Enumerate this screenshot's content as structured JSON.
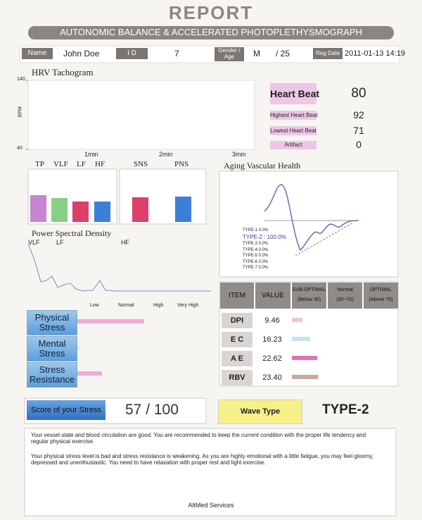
{
  "header": {
    "title": "REPORT",
    "subtitle": "AUTONOMIC BALANCE & ACCELERATED PHOTOPLETHYSMOGRAPH"
  },
  "patient": {
    "name_label": "Name",
    "name": "John Doe",
    "id_label": "I D",
    "id": "7",
    "gender_age_label": "Gender / Age",
    "gender": "M",
    "age": "/ 25",
    "reg_date_label": "Reg Date",
    "reg_date": "2011-01-13 14:19"
  },
  "hrv_tachogram": {
    "title": "HRV Tachogram",
    "y_label": "BPM",
    "ylim": [
      40,
      140
    ],
    "yticks": [
      140,
      40
    ],
    "x_labels": [
      "1min",
      "2min",
      "3min"
    ]
  },
  "heart_rate": [
    {
      "label": "Heart Beat",
      "value": 80
    },
    {
      "label": "Highest Heart Beat",
      "value": 92
    },
    {
      "label": "Lowest Heart Beat",
      "value": 71
    },
    {
      "label": "Artifact",
      "value": 0
    }
  ],
  "bands": {
    "categories": [
      "TP",
      "VLF",
      "LF",
      "HF"
    ],
    "values": [
      38,
      34,
      29,
      29
    ],
    "colors": [
      "#c784d2",
      "#86cf86",
      "#de3f6a",
      "#3b7fd9"
    ]
  },
  "autonomic": {
    "categories": [
      "SNS",
      "PNS"
    ],
    "values": [
      35,
      36
    ],
    "colors": [
      "#de3f6a",
      "#3b7fd9"
    ]
  },
  "aging_vascular": {
    "title": "Aging Vascular Health",
    "types": [
      "TYPE-1  0.0%",
      "TYPE-2 : 100.0%",
      "TYPE-3  0.0%",
      "TYPE-4  0.0%",
      "TYPE-5  0.0%",
      "TYPE-6  0.0%",
      "TYPE-7  0.0%"
    ]
  },
  "psd": {
    "title": "Power Spectral Density",
    "band_labels": [
      "VLF",
      "LF",
      "HF"
    ],
    "x_labels": [
      "Low",
      "Normal",
      "High",
      "Very High"
    ]
  },
  "stress": [
    {
      "label": "Physical Stress",
      "value": 95,
      "color": "#f1a9d2"
    },
    {
      "label": "Mental Stress",
      "value": 3,
      "color": "#e2e2e2"
    },
    {
      "label": "Stress Resistance",
      "value": 35,
      "color": "#f1a9d2"
    }
  ],
  "table": {
    "headers": [
      {
        "title": "ITEM"
      },
      {
        "title": "VALUE"
      },
      {
        "title": "SUB-OPTIMAL",
        "range": "(Below 30)"
      },
      {
        "title": "Normal",
        "range": "(30~70)"
      },
      {
        "title": "OPTIMAL",
        "range": "(Above 70)"
      }
    ],
    "rows": [
      {
        "item": "DPI",
        "value": 9.46,
        "color": "#f5c0dc"
      },
      {
        "item": "E C",
        "value": 16.23,
        "color": "#c5e2ec"
      },
      {
        "item": "A E",
        "value": 22.62,
        "color": "#e670b8"
      },
      {
        "item": "RBV",
        "value": 23.4,
        "value_label": "23.40",
        "color": "#c9a8a0"
      }
    ]
  },
  "score": {
    "label": "Score of your Stress",
    "value": "57 / 100"
  },
  "wave": {
    "label": "Wave Type",
    "value": "TYPE-2"
  },
  "comments": [
    "Your vessel state and blood circulation are good. You are recommended to keep the current condition with the proper life tendency and regular physical exercise.",
    "Your physical stress level is bad and stress resistance is weakening. As you are highly emotional with a little fatigue, you may feel gloomy, depressed and unenthusiastic. You need to have relaxation with proper rest and light exercise."
  ],
  "footer": "AltMed Services"
}
